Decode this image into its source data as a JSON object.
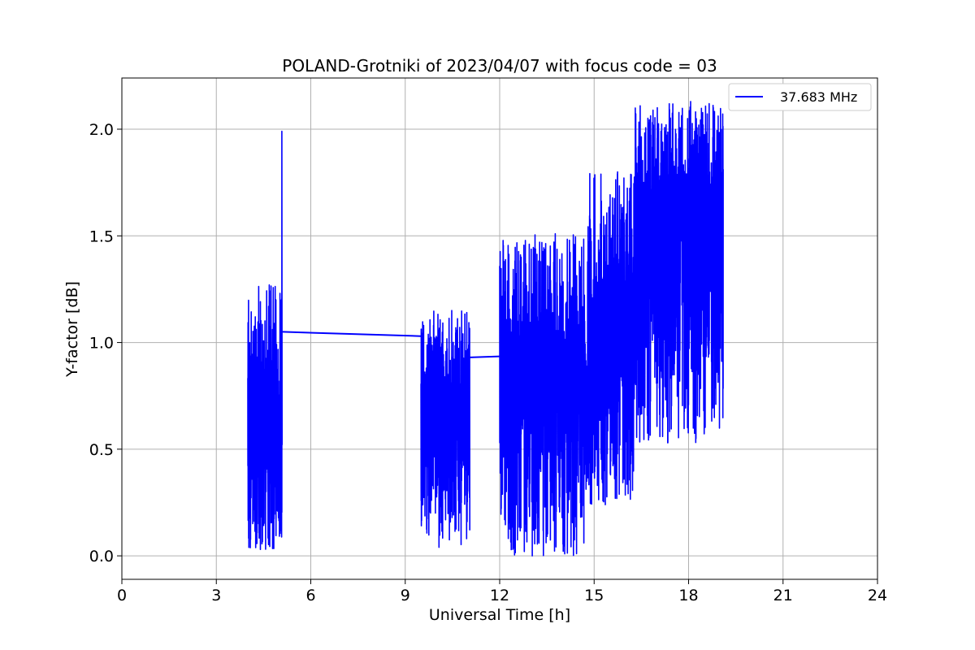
{
  "chart_data": {
    "type": "line",
    "title": "POLAND-Grotniki of 2023/04/07 with focus code = 03",
    "xlabel": "Universal Time [h]",
    "ylabel": "Y-factor [dB]",
    "xlim": [
      0,
      24
    ],
    "ylim": [
      -0.11,
      2.24
    ],
    "xticks": [
      0,
      3,
      6,
      9,
      12,
      15,
      18,
      21,
      24
    ],
    "yticks": [
      0.0,
      0.5,
      1.0,
      1.5,
      2.0
    ],
    "ytick_labels": [
      "0.0",
      "0.5",
      "1.0",
      "1.5",
      "2.0"
    ],
    "grid": true,
    "legend_position": "top-right",
    "series": [
      {
        "name": "37.683 MHz",
        "color": "#0000ff",
        "segments": [
          {
            "x_start": 4.0,
            "x_end": 5.08,
            "y_min": 0.03,
            "y_max": 1.27,
            "y_center": 0.52,
            "spike_x": 5.08,
            "spike_y": 1.99
          },
          {
            "x_start": 9.5,
            "x_end": 11.05,
            "y_min": 0.04,
            "y_max": 1.15,
            "y_center": 0.69
          },
          {
            "x_start": 12.0,
            "x_end": 14.8,
            "y_min": 0.0,
            "y_max": 1.51,
            "y_center": 0.8
          },
          {
            "x_start": 14.8,
            "x_end": 16.3,
            "y_min": 0.24,
            "y_max": 1.8,
            "y_center": 1.05
          },
          {
            "x_start": 16.3,
            "x_end": 19.1,
            "y_min": 0.53,
            "y_max": 2.13,
            "y_center": 1.55
          }
        ],
        "connectors": [
          {
            "x": [
              5.1,
              9.5
            ],
            "y": [
              1.05,
              1.03
            ]
          },
          {
            "x": [
              11.05,
              12.0
            ],
            "y": [
              0.93,
              0.935
            ]
          }
        ]
      }
    ]
  }
}
